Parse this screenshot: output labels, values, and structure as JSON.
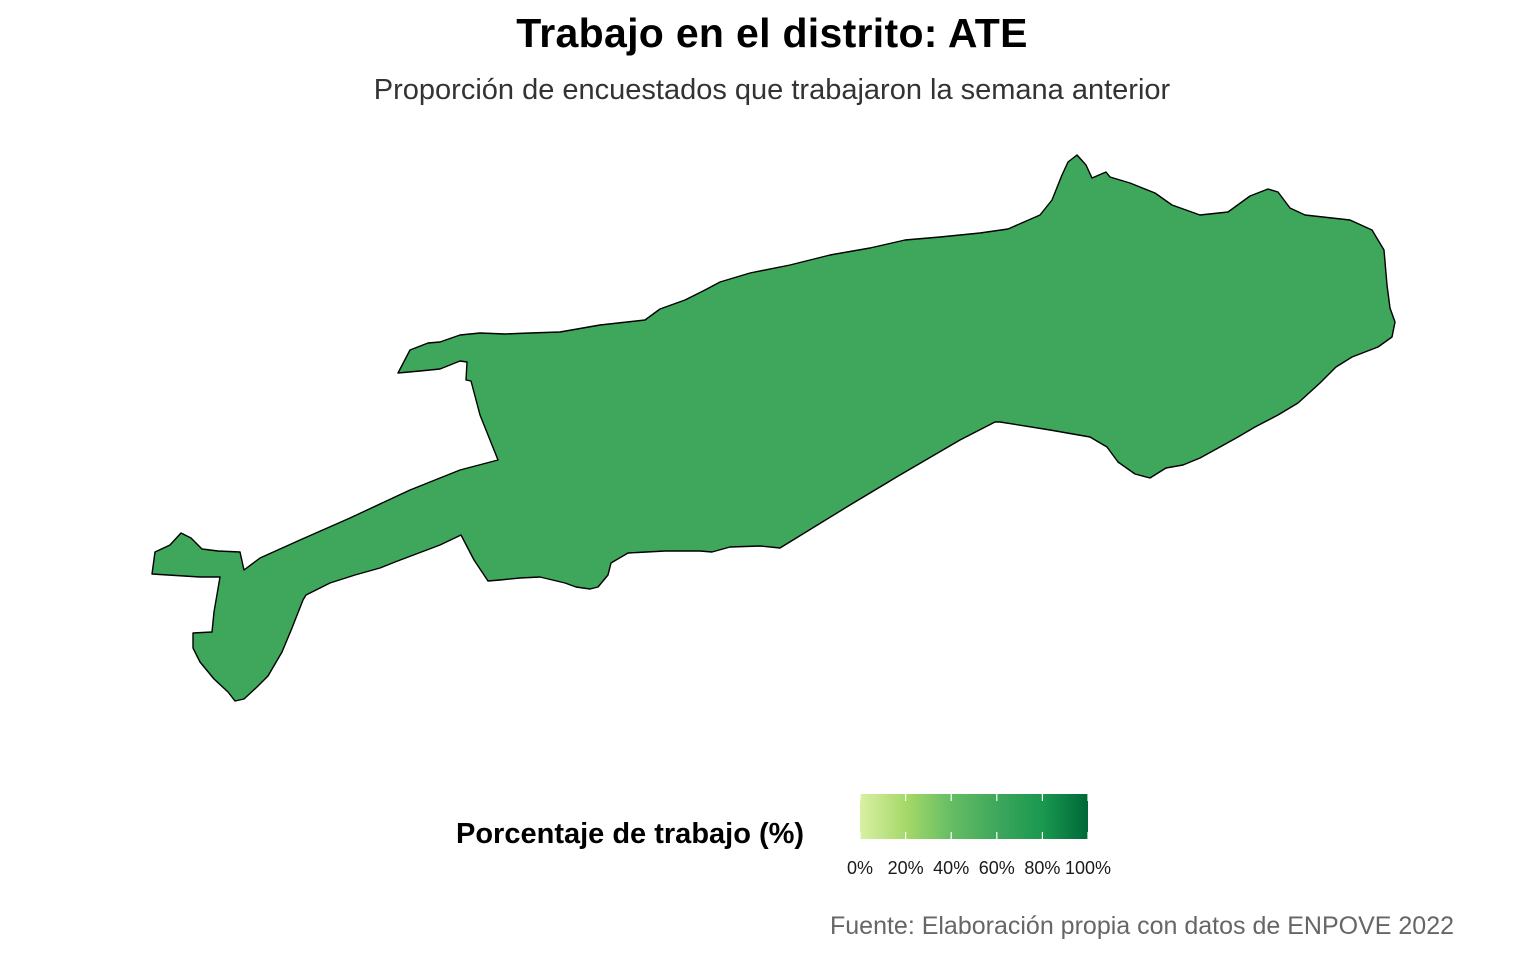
{
  "title": "Trabajo en el distrito: ATE",
  "subtitle": "Proporción de encuestados que trabajaron la semana anterior",
  "caption": "Fuente: Elaboración propia con datos de ENPOVE 2022",
  "map": {
    "region_name": "ATE",
    "value_percent": 68,
    "fill_color": "#3ea75c",
    "outline_color": "#000000"
  },
  "legend": {
    "title": "Porcentaje de trabajo (%)",
    "scale_min": 0,
    "scale_max": 100,
    "tick_values": [
      0,
      20,
      40,
      60,
      80,
      100
    ],
    "ticks": [
      "0%",
      "20%",
      "40%",
      "60%",
      "80%",
      "100%"
    ],
    "gradient_colors": [
      "#d9f0a3",
      "#a6d96a",
      "#66bd63",
      "#3ea75c",
      "#1a9850",
      "#006837"
    ]
  }
}
